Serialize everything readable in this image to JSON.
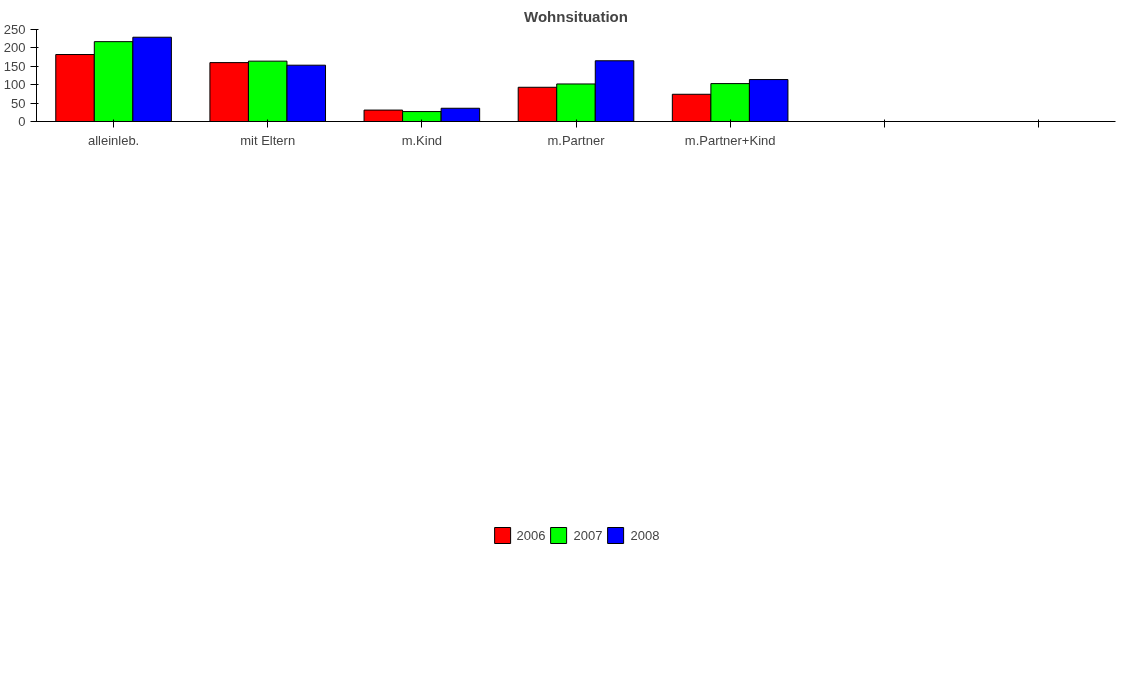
{
  "chart_data": {
    "type": "bar",
    "title": "Wohnsituation",
    "categories": [
      "alleinleb.",
      "mit Eltern",
      "m.Kind",
      "m.Partner",
      "m.Partner+Kind",
      null,
      null
    ],
    "series": [
      {
        "name": "2006",
        "color": "#ff0000",
        "values": [
          182,
          160,
          31,
          93,
          74,
          null,
          null
        ]
      },
      {
        "name": "2007",
        "color": "#00ff00",
        "values": [
          217,
          164,
          27,
          102,
          103,
          null,
          null
        ]
      },
      {
        "name": "2008",
        "color": "#0000ff",
        "values": [
          229,
          153,
          36,
          165,
          114,
          null,
          null
        ]
      }
    ],
    "ylim": [
      0,
      250
    ],
    "yticks": [
      0,
      50,
      100,
      150,
      200,
      250
    ],
    "grid": false,
    "legend": "bottom"
  }
}
